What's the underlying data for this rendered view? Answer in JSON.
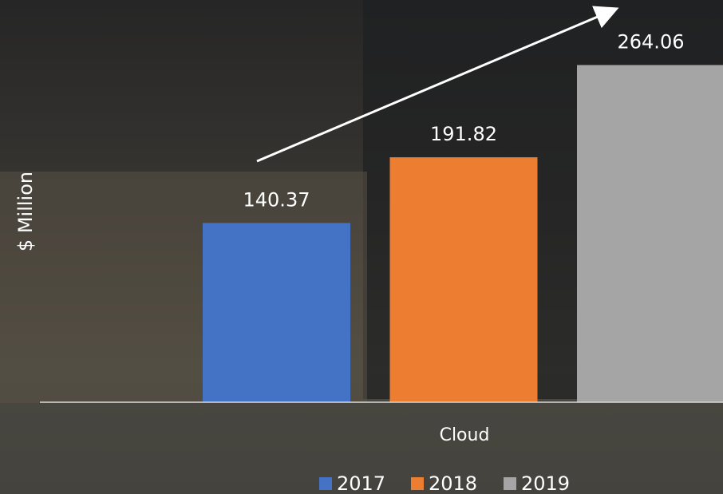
{
  "chart_data": {
    "type": "bar",
    "y_label": "$ Million",
    "categories": [
      "Cloud"
    ],
    "series": [
      {
        "name": "2017",
        "color": "#4472c4",
        "values": [
          140.37
        ]
      },
      {
        "name": "2018",
        "color": "#ed7d31",
        "values": [
          191.82
        ]
      },
      {
        "name": "2019",
        "color": "#a5a5a5",
        "values": [
          264.06
        ]
      }
    ],
    "ylim": [
      0,
      300
    ],
    "legend": "bottom"
  }
}
